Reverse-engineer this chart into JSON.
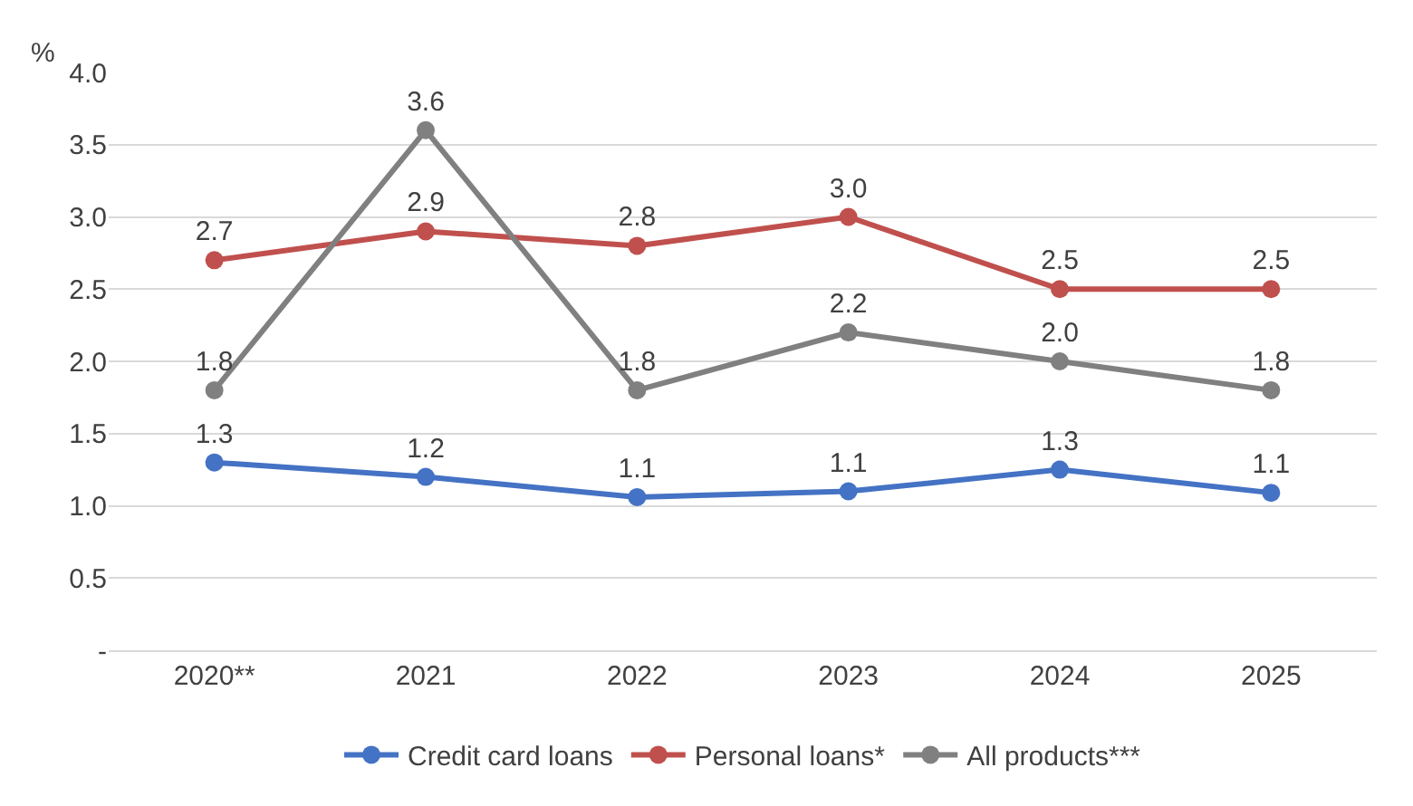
{
  "chart_data": {
    "type": "line",
    "ylabel": "%",
    "categories": [
      "2020**",
      "2021",
      "2022",
      "2023",
      "2024",
      "2025"
    ],
    "series": [
      {
        "name": "Credit card loans",
        "color": "#4472c4",
        "values": [
          1.3,
          1.2,
          1.06,
          1.1,
          1.25,
          1.09
        ],
        "value_labels": [
          "1.3",
          "1.2",
          "1.1",
          "1.1",
          "1.3",
          "1.1"
        ]
      },
      {
        "name": "Personal loans*",
        "color": "#c0504d",
        "values": [
          2.7,
          2.9,
          2.8,
          3.0,
          2.5,
          2.5
        ],
        "value_labels": [
          "2.7",
          "2.9",
          "2.8",
          "3.0",
          "2.5",
          "2.5"
        ]
      },
      {
        "name": "All products***",
        "color": "#808080",
        "values": [
          1.8,
          3.6,
          1.8,
          2.2,
          2.0,
          1.8
        ],
        "value_labels": [
          "1.8",
          "3.6",
          "1.8",
          "2.2",
          "2.0",
          "1.8"
        ]
      }
    ],
    "ylim": [
      0,
      4.0
    ],
    "yticks": [
      {
        "value": 0,
        "label": "-"
      },
      0.5,
      {
        "value": 1,
        "label": "1.0"
      },
      1.5,
      {
        "value": 2,
        "label": "2.0"
      },
      2.5,
      {
        "value": 3,
        "label": "3.0"
      },
      3.5,
      {
        "value": 4,
        "label": "4.0"
      }
    ],
    "grid": "y",
    "legend": "bottom",
    "marker": "circle",
    "line_style": "solid"
  }
}
